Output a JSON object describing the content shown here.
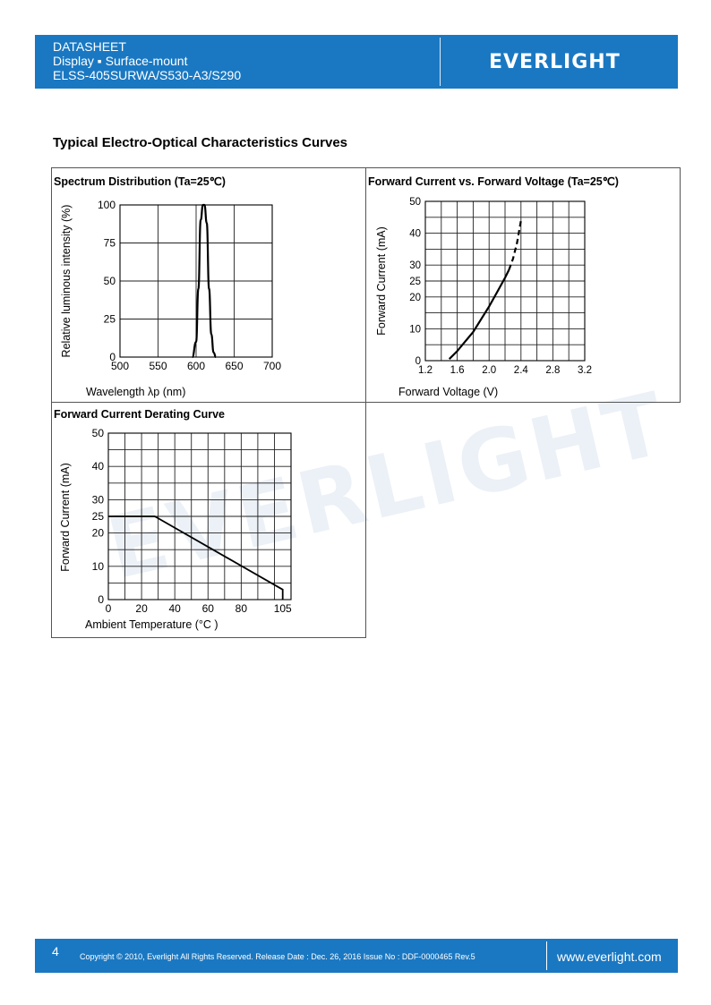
{
  "header": {
    "line1": "DATASHEET",
    "line2": "Display ▪ Surface-mount",
    "line3": "ELSS-405SURWA/S530-A3/S290",
    "logo": "EVERLIGHT"
  },
  "section_title": "Typical Electro-Optical Characteristics Curves",
  "watermark": "EVERLIGHT",
  "chart_data": [
    {
      "type": "line",
      "title": "Spectrum Distribution (Ta=25℃)",
      "xlabel": "Wavelength λp (nm)",
      "ylabel": "Relative luminous intensity (%)",
      "xlim": [
        500,
        700
      ],
      "ylim": [
        0,
        100
      ],
      "xticks": [
        "500",
        "550",
        "600",
        "650",
        "700"
      ],
      "yticks": [
        "0",
        "25",
        "50",
        "75",
        "100"
      ],
      "grid": true,
      "x": [
        595,
        600,
        603,
        606,
        609,
        611,
        614,
        617,
        620,
        623,
        626
      ],
      "y": [
        0,
        10,
        45,
        90,
        100,
        100,
        88,
        45,
        15,
        3,
        0
      ]
    },
    {
      "type": "line",
      "title": "Forward Current vs. Forward Voltage (Ta=25℃)",
      "xlabel": "Forward Voltage (V)",
      "ylabel": "Forward Current (mA)",
      "xlim": [
        1.2,
        3.2
      ],
      "ylim": [
        0,
        50
      ],
      "xticks": [
        "1.2",
        "1.6",
        "2.0",
        "2.4",
        "2.8",
        "3.2"
      ],
      "yticks": [
        "0",
        "10",
        "20",
        "25",
        "30",
        "40",
        "50"
      ],
      "grid": true,
      "solid": {
        "x": [
          1.5,
          1.6,
          1.7,
          1.8,
          1.9,
          2.0,
          2.1,
          2.2,
          2.25
        ],
        "y": [
          0.5,
          3,
          6,
          9,
          13,
          17,
          21.5,
          26,
          28.5
        ]
      },
      "dashed": {
        "x": [
          2.25,
          2.3,
          2.35,
          2.4
        ],
        "y": [
          28.5,
          32,
          37,
          44
        ]
      }
    },
    {
      "type": "line",
      "title": "Forward Current Derating Curve",
      "xlabel": "Ambient Temperature (°C )",
      "ylabel": "Forward Current (mA)",
      "xlim": [
        0,
        110
      ],
      "ylim": [
        0,
        50
      ],
      "xticks": [
        "0",
        "20",
        "40",
        "60",
        "80",
        "105"
      ],
      "yticks": [
        "0",
        "10",
        "20",
        "25",
        "30",
        "40",
        "50"
      ],
      "grid": true,
      "x": [
        0,
        28,
        105,
        105
      ],
      "y": [
        25,
        25,
        3,
        0
      ]
    }
  ],
  "footer": {
    "page": "4",
    "copyright": "Copyright © 2010, Everlight All Rights Reserved. Release Date : Dec. 26, 2016 Issue No : DDF-0000465 Rev.5",
    "website": "www.everlight.com"
  }
}
